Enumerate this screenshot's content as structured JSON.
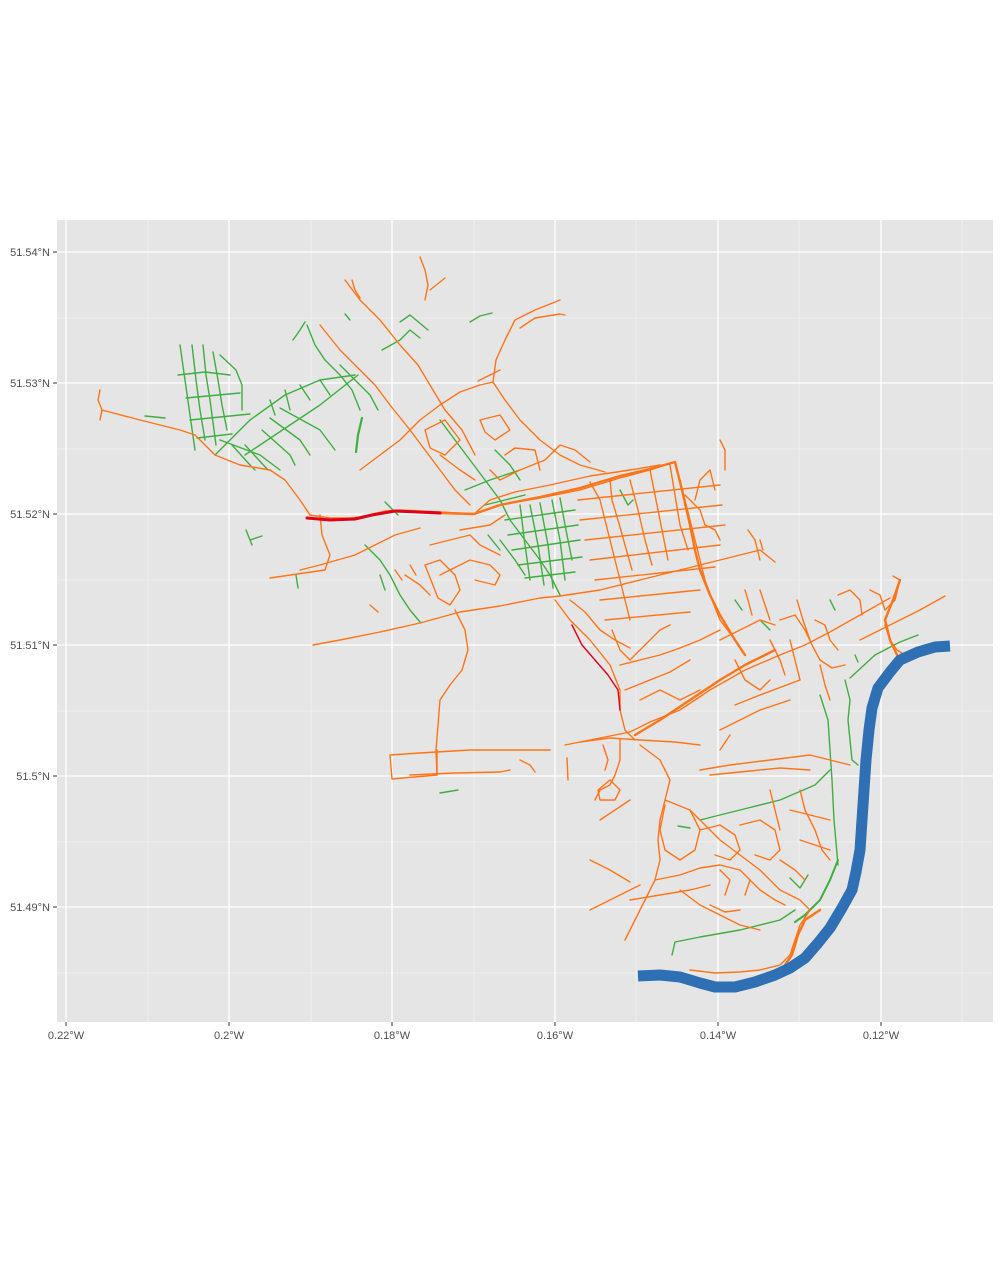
{
  "map": {
    "panel_background": "#e5e5e5",
    "grid_color": "#ffffff",
    "colors": {
      "river": "#2f6fb3",
      "major_road": "#ff7417",
      "residential_road": "#3fae3f",
      "motorway": "#e0001a"
    },
    "x_axis": {
      "labels": [
        "0.22°W",
        "0.2°W",
        "0.18°W",
        "0.16°W",
        "0.14°W",
        "0.12°W"
      ],
      "values": [
        -0.22,
        -0.2,
        -0.18,
        -0.16,
        -0.14,
        -0.12
      ]
    },
    "y_axis": {
      "labels": [
        "51.49°N",
        "51.5°N",
        "51.51°N",
        "51.52°N",
        "51.53°N",
        "51.54°N"
      ],
      "values": [
        51.49,
        51.5,
        51.51,
        51.52,
        51.53,
        51.54
      ]
    }
  }
}
